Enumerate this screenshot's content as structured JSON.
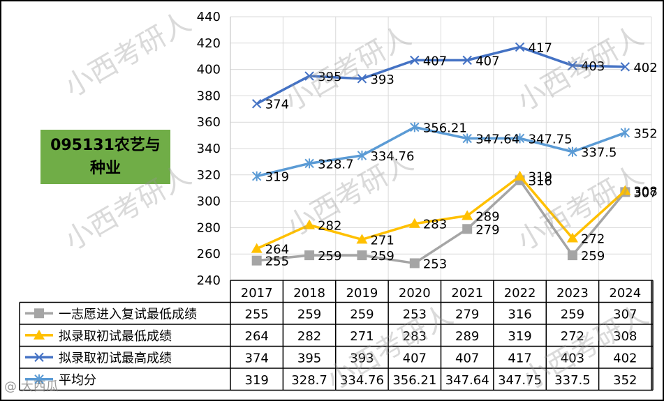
{
  "major_label": "095131农艺与种业",
  "watermark": "小西考研人",
  "credit": "@ 大西瓜",
  "chart_data": {
    "type": "line",
    "categories": [
      "2017",
      "2018",
      "2019",
      "2020",
      "2021",
      "2022",
      "2023",
      "2024"
    ],
    "ylim": [
      240,
      440
    ],
    "yticks": [
      240,
      260,
      280,
      300,
      320,
      340,
      360,
      380,
      400,
      420,
      440
    ],
    "ytick_labels": [
      "240",
      "260",
      "280",
      "300",
      "320",
      "340",
      "360",
      "380",
      "400",
      "420",
      "440"
    ],
    "grid": true,
    "legend": "data-table",
    "series": [
      {
        "name": "一志愿进入复试最低成绩",
        "color": "#a5a5a5",
        "marker": "square",
        "values": [
          255,
          259,
          259,
          253,
          279,
          316,
          259,
          307
        ],
        "labels": [
          "255",
          "259",
          "259",
          "253",
          "279",
          "316",
          "259",
          "307"
        ]
      },
      {
        "name": "拟录取初试最低成绩",
        "color": "#ffc000",
        "marker": "triangle",
        "values": [
          264,
          282,
          271,
          283,
          289,
          319,
          272,
          308
        ],
        "labels": [
          "264",
          "282",
          "271",
          "283",
          "289",
          "319",
          "272",
          "308"
        ]
      },
      {
        "name": "拟录取初试最高成绩",
        "color": "#4472c4",
        "marker": "x",
        "values": [
          374,
          395,
          393,
          407,
          407,
          417,
          403,
          402
        ],
        "labels": [
          "374",
          "395",
          "393",
          "407",
          "407",
          "417",
          "403",
          "402"
        ]
      },
      {
        "name": "平均分",
        "color": "#5b9bd5",
        "marker": "star",
        "values": [
          319,
          328.7,
          334.76,
          356.21,
          347.64,
          347.75,
          337.5,
          352
        ],
        "labels": [
          "319",
          "328.7",
          "334.76",
          "356.21",
          "347.64",
          "347.75",
          "337.5",
          "352"
        ]
      }
    ]
  }
}
